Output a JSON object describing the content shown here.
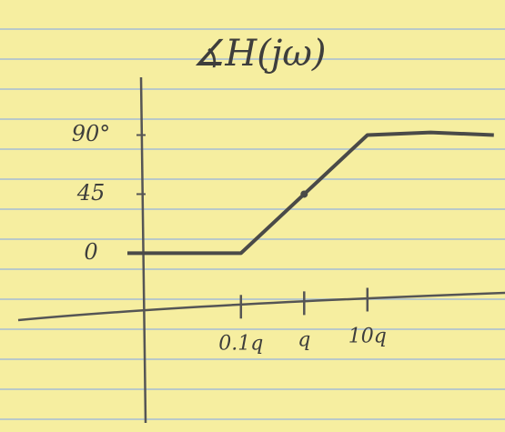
{
  "chart_data": {
    "type": "line",
    "title": "∡H(jω)",
    "x": [
      0.0016,
      0.1,
      1,
      10,
      100,
      1000
    ],
    "series": [
      {
        "name": null,
        "color": "#4a4a48",
        "values": [
          0,
          0,
          45,
          90,
          92,
          90
        ]
      }
    ],
    "points": [
      {
        "x": 1,
        "y": 45
      }
    ],
    "xscale": "log",
    "xlim": [
      3e-05,
      1500
    ],
    "xticks": [
      {
        "value": 0.1,
        "label": "0.1q"
      },
      {
        "value": 1,
        "label": "q"
      },
      {
        "value": 10,
        "label": "10q"
      }
    ],
    "ylim": [
      -130,
      134
    ],
    "yticks": [
      0,
      45,
      {
        "value": 90,
        "label": "90°"
      }
    ],
    "grid": false
  }
}
